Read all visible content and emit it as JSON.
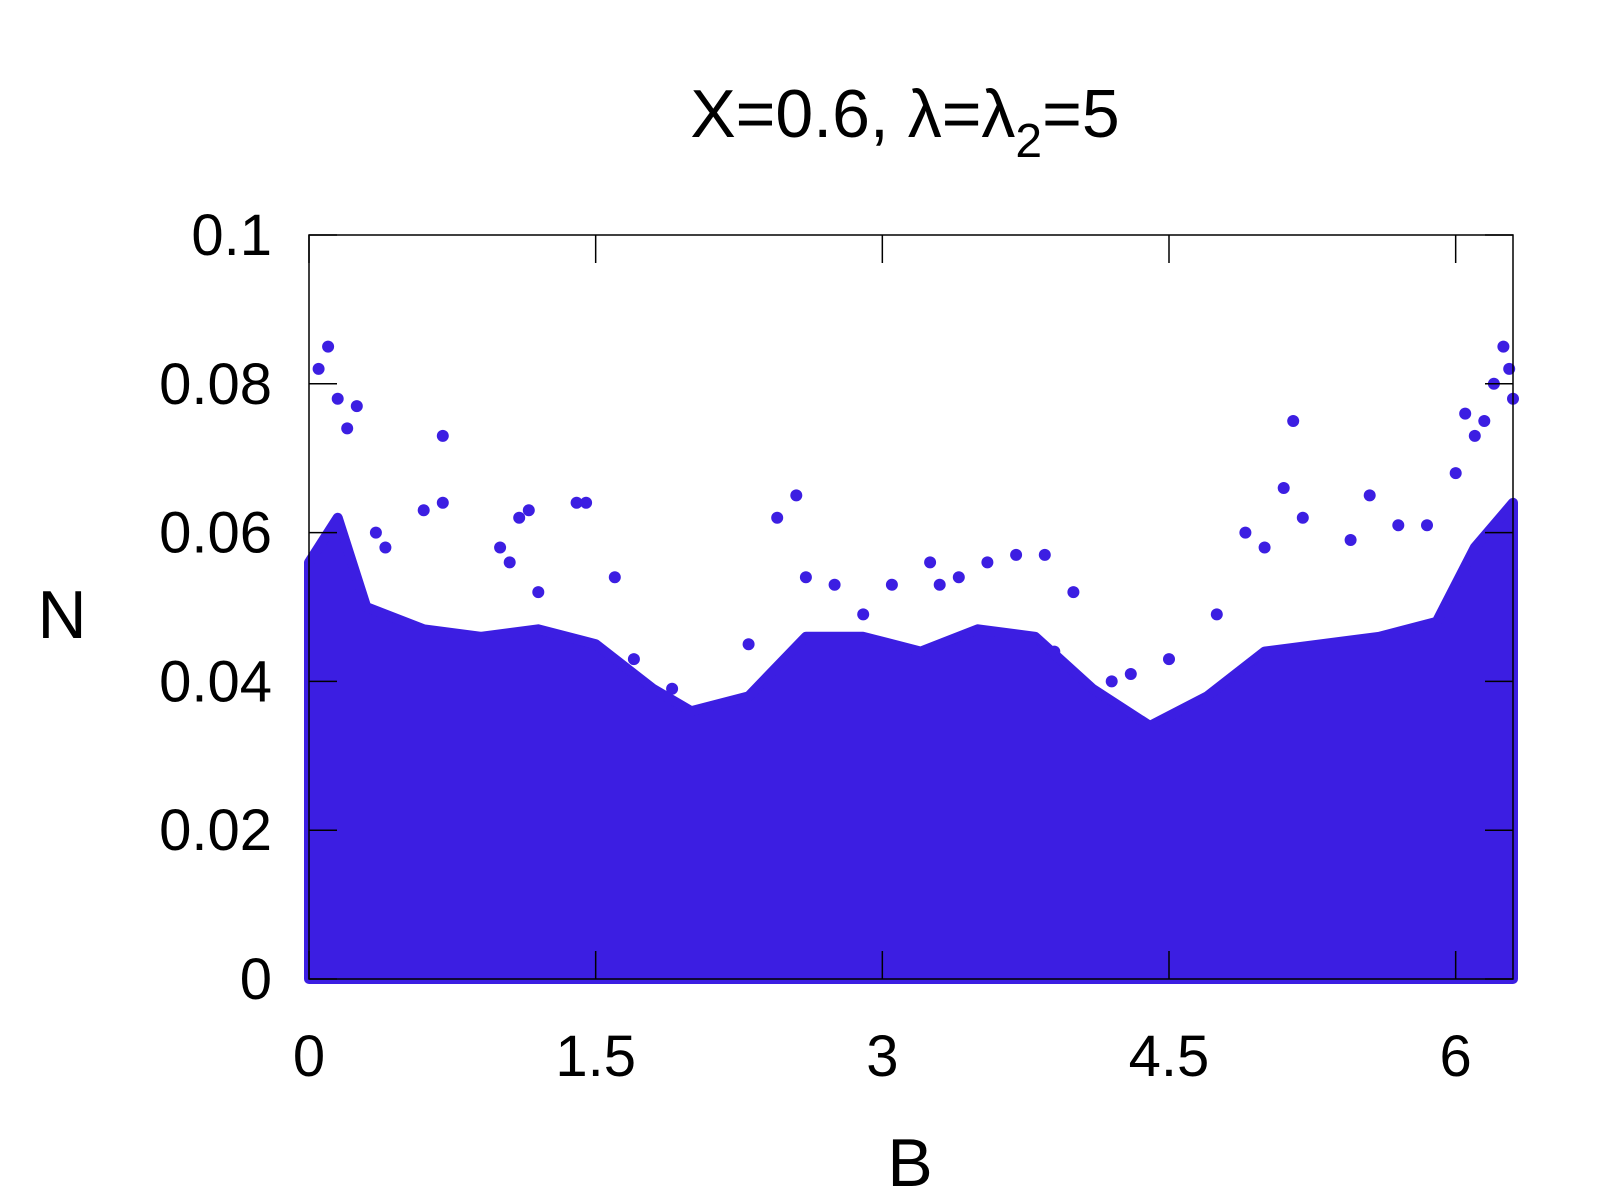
{
  "chart_data": {
    "type": "scatter",
    "title": "X=0.6, λ=λ",
    "title_subscript": "2",
    "title_suffix": "=5",
    "xlabel": "B",
    "ylabel": "N",
    "xlim": [
      0,
      6.3
    ],
    "ylim": [
      0,
      0.1
    ],
    "x_ticks": [
      0,
      1.5,
      3,
      4.5,
      6
    ],
    "x_tick_labels": [
      "0",
      "1.5",
      "3",
      "4.5",
      "6"
    ],
    "y_ticks": [
      0,
      0.02,
      0.04,
      0.06,
      0.08,
      0.1
    ],
    "y_tick_labels": [
      "0",
      "0.02",
      "0.04",
      "0.06",
      "0.08",
      "0.1"
    ],
    "grid": false,
    "legend": "none",
    "marker_color": "#3c1ee2",
    "dense_fill_upper_envelope": {
      "x": [
        0.0,
        0.15,
        0.3,
        0.6,
        0.9,
        1.2,
        1.5,
        1.8,
        2.0,
        2.3,
        2.6,
        2.9,
        3.2,
        3.5,
        3.8,
        4.1,
        4.4,
        4.7,
        5.0,
        5.3,
        5.6,
        5.9,
        6.1,
        6.3
      ],
      "y": [
        0.056,
        0.062,
        0.05,
        0.047,
        0.046,
        0.047,
        0.045,
        0.039,
        0.036,
        0.038,
        0.046,
        0.046,
        0.044,
        0.047,
        0.046,
        0.039,
        0.034,
        0.038,
        0.044,
        0.045,
        0.046,
        0.048,
        0.058,
        0.064
      ]
    },
    "scatter_points": {
      "x": [
        0.1,
        0.05,
        0.15,
        0.25,
        0.7,
        0.2,
        0.6,
        0.7,
        1.1,
        1.15,
        1.4,
        1.45,
        1.0,
        1.2,
        1.6,
        1.7,
        1.9,
        2.3,
        2.45,
        2.55,
        2.6,
        2.75,
        2.9,
        3.05,
        3.25,
        3.4,
        3.55,
        3.7,
        3.85,
        3.9,
        4.2,
        4.3,
        4.5,
        4.75,
        4.9,
        5.0,
        5.1,
        5.15,
        5.2,
        5.45,
        5.55,
        5.7,
        5.85,
        6.0,
        6.1,
        6.15,
        6.2,
        6.25,
        6.28,
        6.3,
        6.05,
        0.35,
        0.4,
        1.05,
        3.3,
        4.0
      ],
      "y": [
        0.085,
        0.082,
        0.078,
        0.077,
        0.073,
        0.074,
        0.063,
        0.064,
        0.062,
        0.063,
        0.064,
        0.064,
        0.058,
        0.052,
        0.054,
        0.043,
        0.039,
        0.045,
        0.062,
        0.065,
        0.054,
        0.053,
        0.049,
        0.053,
        0.056,
        0.054,
        0.056,
        0.057,
        0.057,
        0.044,
        0.04,
        0.041,
        0.043,
        0.049,
        0.06,
        0.058,
        0.066,
        0.075,
        0.062,
        0.059,
        0.065,
        0.061,
        0.061,
        0.068,
        0.073,
        0.075,
        0.08,
        0.085,
        0.082,
        0.078,
        0.076,
        0.06,
        0.058,
        0.056,
        0.053,
        0.052
      ]
    }
  }
}
